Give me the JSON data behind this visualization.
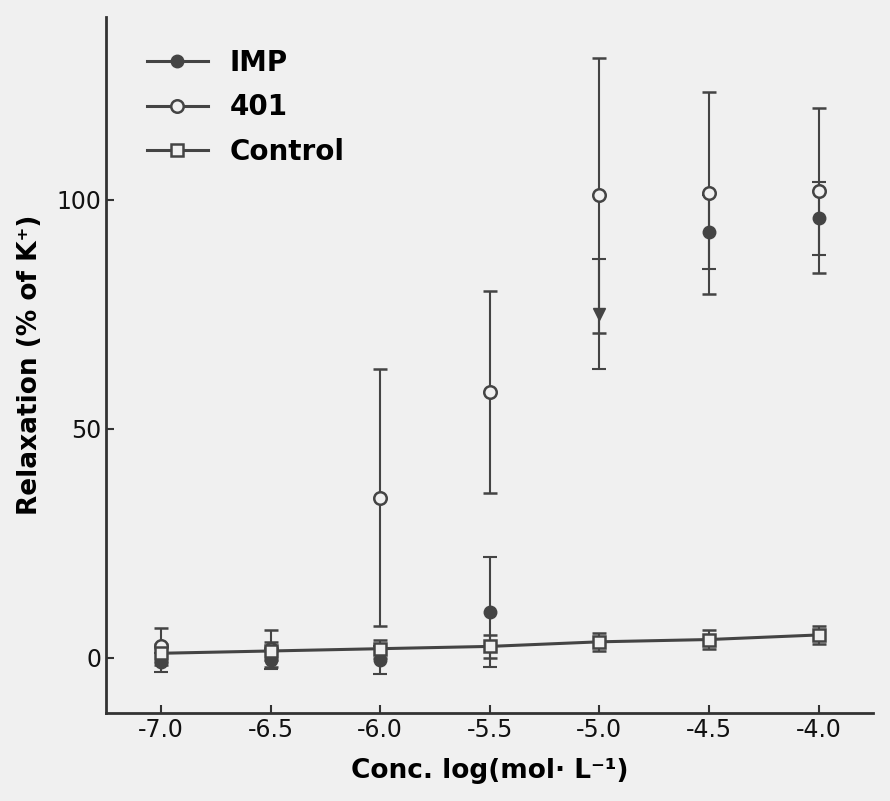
{
  "title": "",
  "xlabel": "Conc. log(mol· L⁻¹)",
  "ylabel": "Relaxation (% of K⁺)",
  "xlim": [
    -7.25,
    -3.75
  ],
  "ylim": [
    -12,
    140
  ],
  "xticks": [
    -7.0,
    -6.5,
    -6.0,
    -5.5,
    -5.0,
    -4.5,
    -4.0
  ],
  "yticks": [
    0,
    50,
    100
  ],
  "background_color": "#f0f0f0",
  "IMP": {
    "x": [
      -7.0,
      -6.5,
      -6.0,
      -5.5,
      -5.0,
      -4.5,
      -4.0
    ],
    "y": [
      -1.0,
      -0.5,
      -0.5,
      10.0,
      75.0,
      93.0,
      96.0
    ],
    "yerr": [
      2.0,
      2.0,
      3.0,
      12.0,
      12.0,
      8.0,
      8.0
    ],
    "markers": [
      "o",
      "o",
      "o",
      "o",
      "v",
      "s",
      "s"
    ],
    "color": "#555555",
    "markersize": 9,
    "label": "IMP",
    "ec50_guess": -5.2,
    "bottom_guess": -1,
    "top_guess": 97,
    "n_guess": 2.0
  },
  "401": {
    "x": [
      -7.0,
      -6.5,
      -6.0,
      -5.5,
      -5.0,
      -4.5,
      -4.0
    ],
    "y": [
      2.5,
      2.0,
      35.0,
      58.0,
      101.0,
      101.5,
      102.0
    ],
    "yerr": [
      4.0,
      4.0,
      28.0,
      22.0,
      30.0,
      22.0,
      18.0
    ],
    "color": "#555555",
    "markersize": 9,
    "label": "401",
    "ec50_guess": -6.1,
    "bottom_guess": 2,
    "top_guess": 103,
    "n_guess": 1.5
  },
  "Control": {
    "x": [
      -7.0,
      -6.5,
      -6.0,
      -5.5,
      -5.0,
      -4.5,
      -4.0
    ],
    "y": [
      1.0,
      1.5,
      2.0,
      2.5,
      3.5,
      4.0,
      5.0
    ],
    "yerr": [
      2.0,
      2.0,
      2.0,
      2.5,
      2.0,
      2.0,
      2.0
    ],
    "color": "#555555",
    "markersize": 8,
    "label": "Control"
  },
  "legend_fontsize": 20,
  "axis_label_fontsize": 19,
  "tick_fontsize": 17,
  "line_color": "#444444",
  "line_width": 2.2
}
